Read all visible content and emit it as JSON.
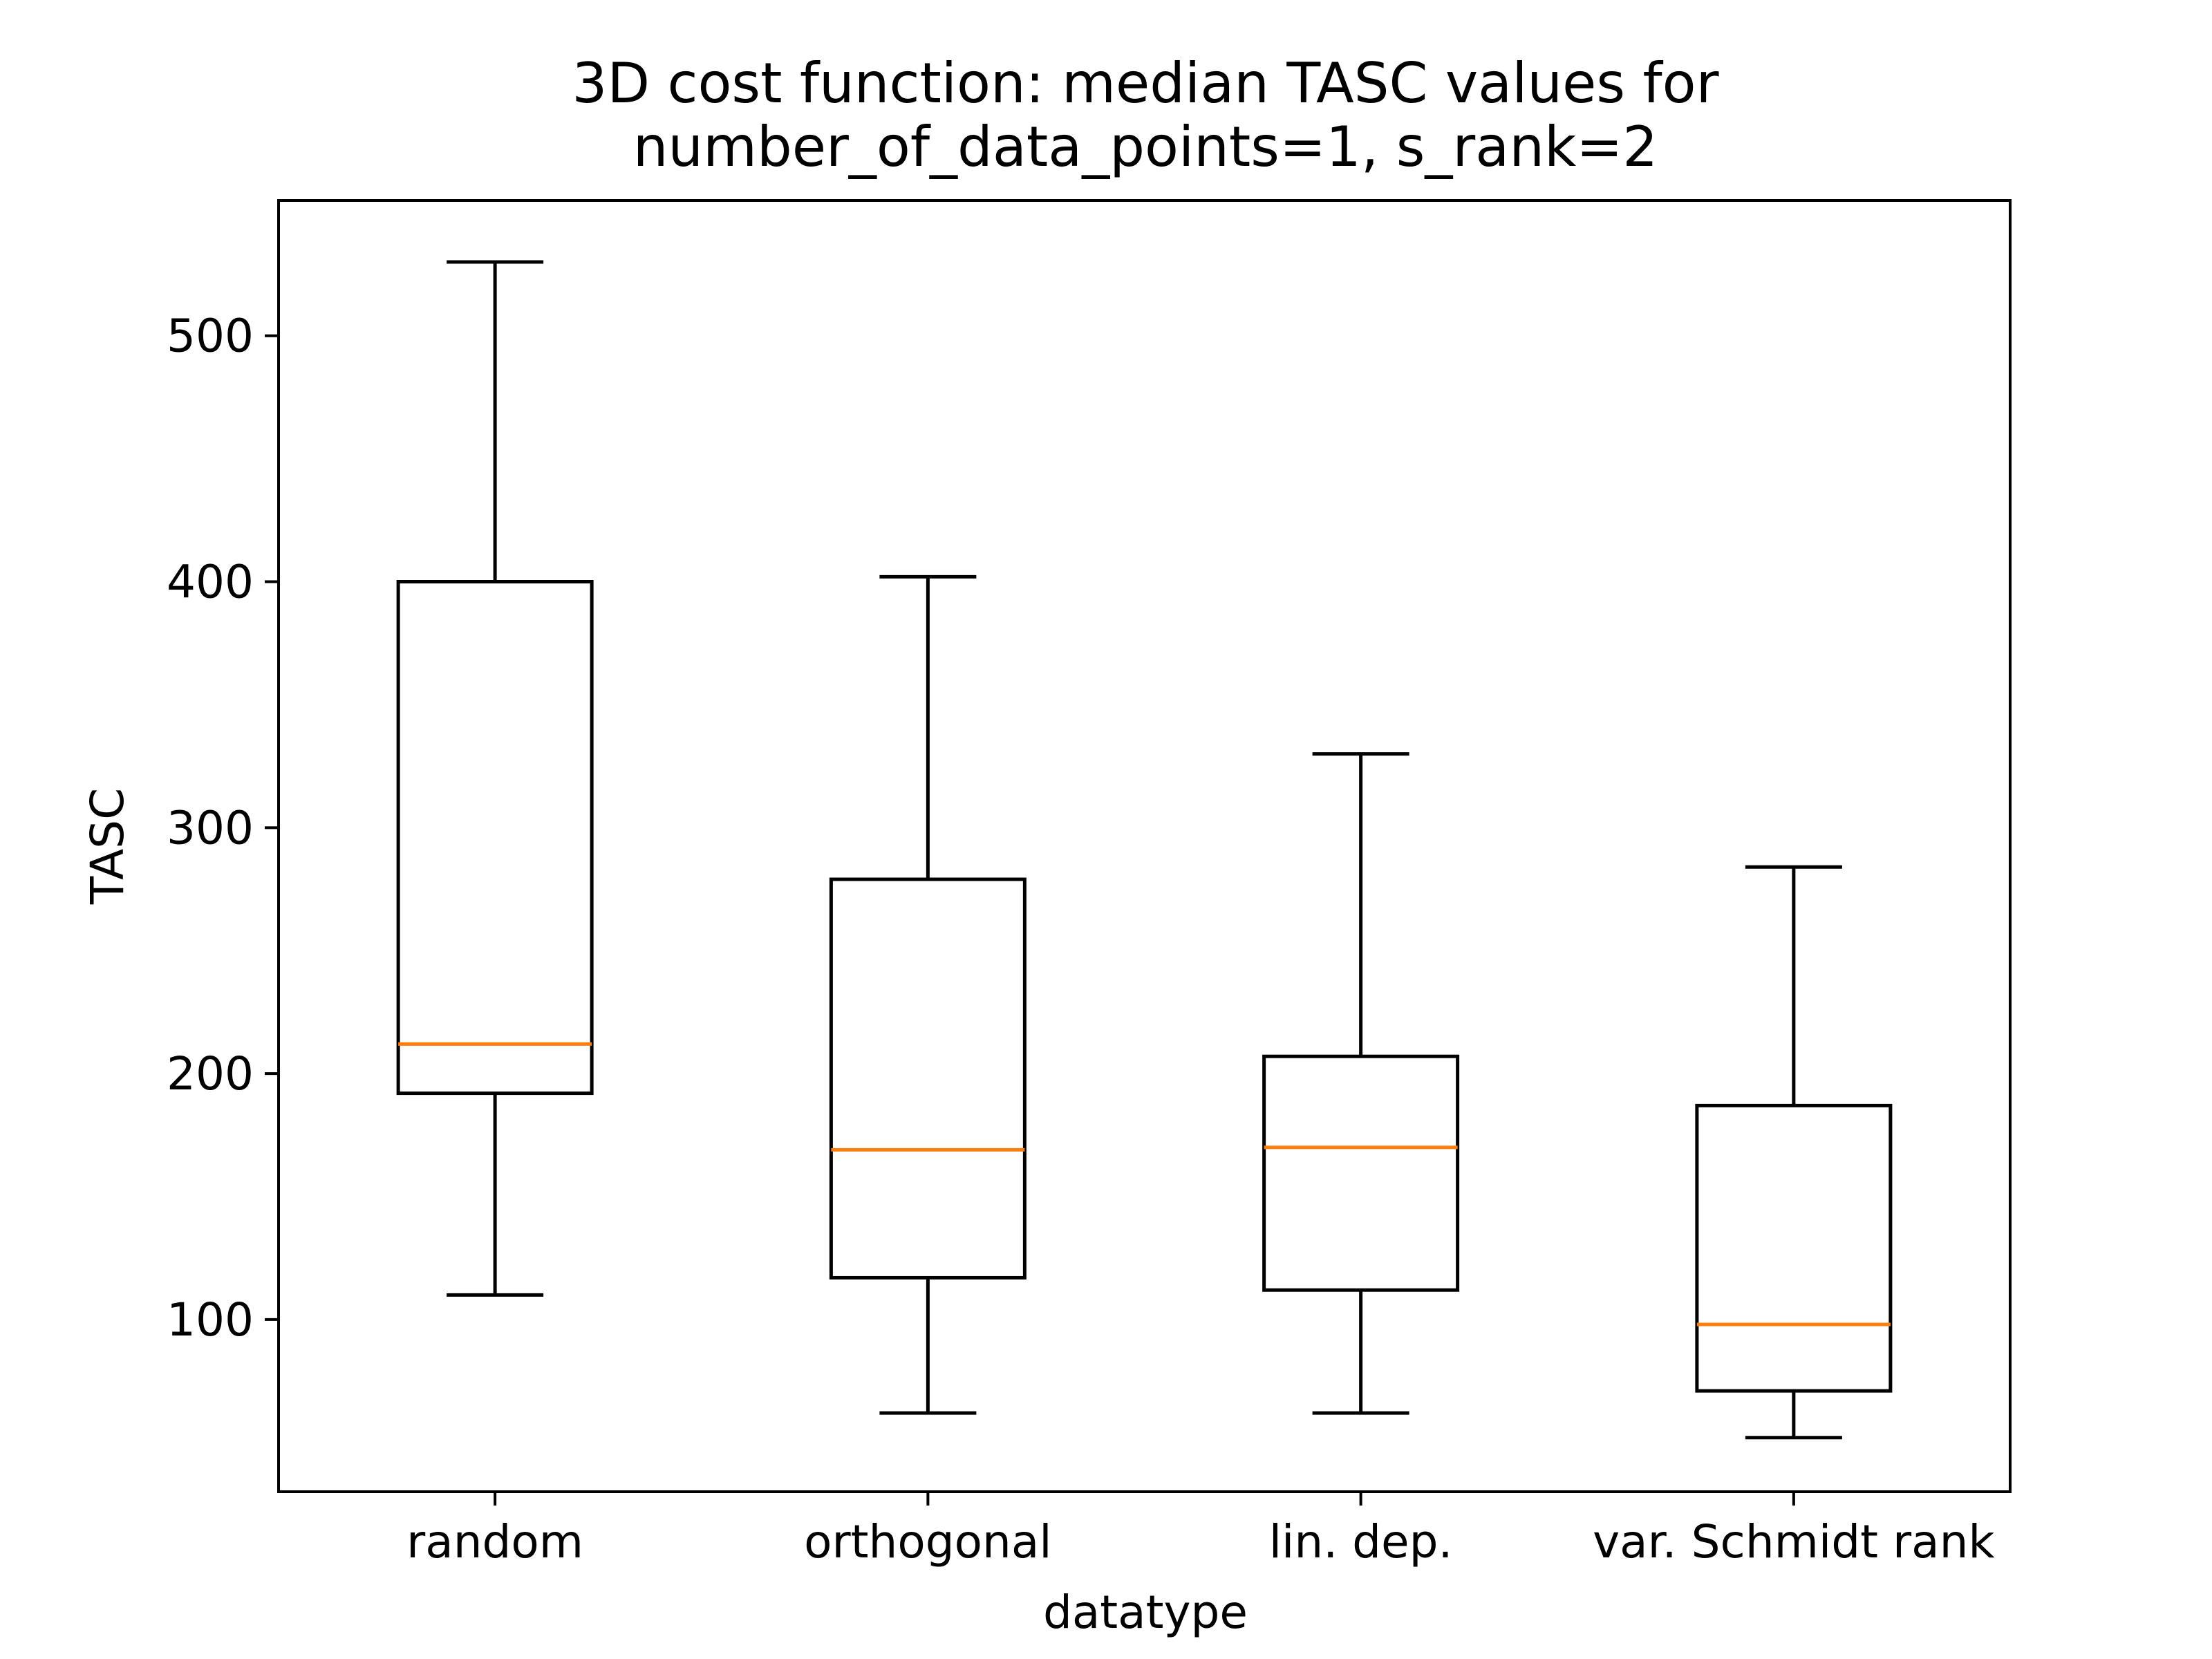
{
  "chart_data": {
    "type": "box",
    "title_line1": "3D cost function: median TASC values for",
    "title_line2": "number_of_data_points=1, s_rank=2",
    "xlabel": "datatype",
    "ylabel": "TASC",
    "ylim": [
      30,
      555
    ],
    "yticks": [
      100,
      200,
      300,
      400,
      500
    ],
    "grid": false,
    "categories": [
      "random",
      "orthogonal",
      "lin. dep.",
      "var. Schmidt rank"
    ],
    "boxes": [
      {
        "category": "random",
        "whisker_low": 110,
        "q1": 192,
        "median": 212,
        "q3": 400,
        "whisker_high": 530
      },
      {
        "category": "orthogonal",
        "whisker_low": 62,
        "q1": 117,
        "median": 169,
        "q3": 279,
        "whisker_high": 402
      },
      {
        "category": "lin. dep.",
        "whisker_low": 62,
        "q1": 112,
        "median": 170,
        "q3": 207,
        "whisker_high": 330
      },
      {
        "category": "var. Schmidt rank",
        "whisker_low": 52,
        "q1": 71,
        "median": 98,
        "q3": 187,
        "whisker_high": 284
      }
    ],
    "colors": {
      "box": "#000000",
      "median": "#ff7f0e"
    }
  }
}
